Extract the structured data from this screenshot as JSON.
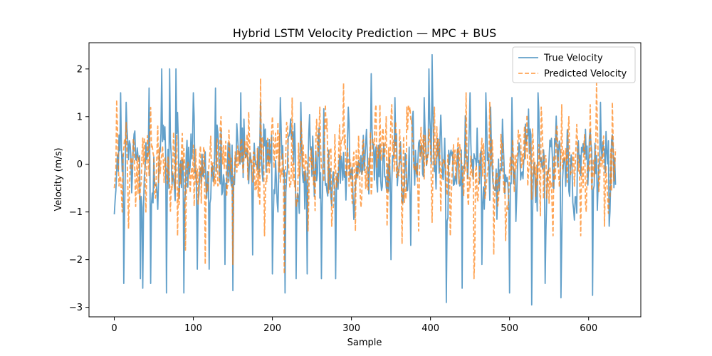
{
  "chart_data": {
    "type": "line",
    "title": "Hybrid LSTM Velocity Prediction — MPC + BUS",
    "xlabel": "Sample",
    "ylabel": "Velocity (m/s)",
    "xlim": [
      -32,
      666
    ],
    "ylim": [
      -3.2,
      2.55
    ],
    "xticks": [
      0,
      100,
      200,
      300,
      400,
      500,
      600
    ],
    "yticks": [
      -3,
      -2,
      -1,
      0,
      1,
      2
    ],
    "grid": false,
    "legend_position": "top-right",
    "n_points": 635,
    "series": [
      {
        "name": "True Velocity",
        "color": "#1f77b4",
        "style": "solid",
        "keypoints": [
          [
            0,
            -1.05
          ],
          [
            4,
            0.2
          ],
          [
            8,
            1.5
          ],
          [
            12,
            -2.5
          ],
          [
            15,
            1.3
          ],
          [
            33,
            -2.4
          ],
          [
            36,
            -2.6
          ],
          [
            44,
            1.6
          ],
          [
            46,
            -2.5
          ],
          [
            60,
            2.0
          ],
          [
            66,
            -2.7
          ],
          [
            70,
            2.0
          ],
          [
            78,
            2.0
          ],
          [
            88,
            -2.7
          ],
          [
            100,
            1.5
          ],
          [
            105,
            -2.2
          ],
          [
            120,
            -2.2
          ],
          [
            128,
            1.6
          ],
          [
            140,
            -2.1
          ],
          [
            150,
            -2.65
          ],
          [
            160,
            1.5
          ],
          [
            175,
            -1.9
          ],
          [
            185,
            1.3
          ],
          [
            200,
            -2.3
          ],
          [
            210,
            1.4
          ],
          [
            216,
            -2.7
          ],
          [
            230,
            -2.4
          ],
          [
            236,
            1.3
          ],
          [
            244,
            -2.3
          ],
          [
            262,
            -2.4
          ],
          [
            280,
            -2.4
          ],
          [
            296,
            1.2
          ],
          [
            325,
            1.9
          ],
          [
            350,
            -2.0
          ],
          [
            355,
            1.4
          ],
          [
            375,
            -1.7
          ],
          [
            392,
            1.4
          ],
          [
            398,
            2.0
          ],
          [
            402,
            2.3
          ],
          [
            420,
            -2.9
          ],
          [
            440,
            -2.6
          ],
          [
            450,
            1.5
          ],
          [
            465,
            -2.1
          ],
          [
            470,
            1.5
          ],
          [
            476,
            1.2
          ],
          [
            500,
            -2.7
          ],
          [
            503,
            1.4
          ],
          [
            508,
            -1.2
          ],
          [
            528,
            -2.95
          ],
          [
            536,
            1.5
          ],
          [
            545,
            -2.5
          ],
          [
            565,
            -2.8
          ],
          [
            580,
            -0.8
          ],
          [
            605,
            -2.75
          ],
          [
            615,
            1.3
          ],
          [
            626,
            -1.3
          ],
          [
            635,
            0.4
          ]
        ]
      },
      {
        "name": "Predicted Velocity",
        "color": "#ff7f0e",
        "style": "dashed",
        "keypoints": [
          [
            0,
            -0.5
          ],
          [
            3,
            1.35
          ],
          [
            10,
            -1.0
          ],
          [
            18,
            -1.35
          ],
          [
            40,
            -1.0
          ],
          [
            55,
            0.8
          ],
          [
            80,
            -1.5
          ],
          [
            90,
            -1.8
          ],
          [
            100,
            0.4
          ],
          [
            115,
            -2.1
          ],
          [
            135,
            1.0
          ],
          [
            150,
            -2.1
          ],
          [
            170,
            1.1
          ],
          [
            185,
            1.8
          ],
          [
            190,
            -1.5
          ],
          [
            200,
            1.0
          ],
          [
            215,
            -2.3
          ],
          [
            225,
            1.4
          ],
          [
            245,
            -1.4
          ],
          [
            260,
            1.2
          ],
          [
            275,
            -1.3
          ],
          [
            290,
            1.7
          ],
          [
            305,
            -1.4
          ],
          [
            330,
            1.1
          ],
          [
            345,
            -1.3
          ],
          [
            370,
            1.2
          ],
          [
            385,
            -1.4
          ],
          [
            405,
            1.2
          ],
          [
            425,
            -1.5
          ],
          [
            445,
            1.5
          ],
          [
            455,
            -2.4
          ],
          [
            475,
            1.3
          ],
          [
            480,
            -1.9
          ],
          [
            495,
            -1.6
          ],
          [
            540,
            1.2
          ],
          [
            555,
            -1.5
          ],
          [
            575,
            1.0
          ],
          [
            590,
            -1.5
          ],
          [
            610,
            1.7
          ],
          [
            620,
            -1.3
          ],
          [
            630,
            1.3
          ],
          [
            635,
            -1.0
          ]
        ]
      }
    ]
  }
}
